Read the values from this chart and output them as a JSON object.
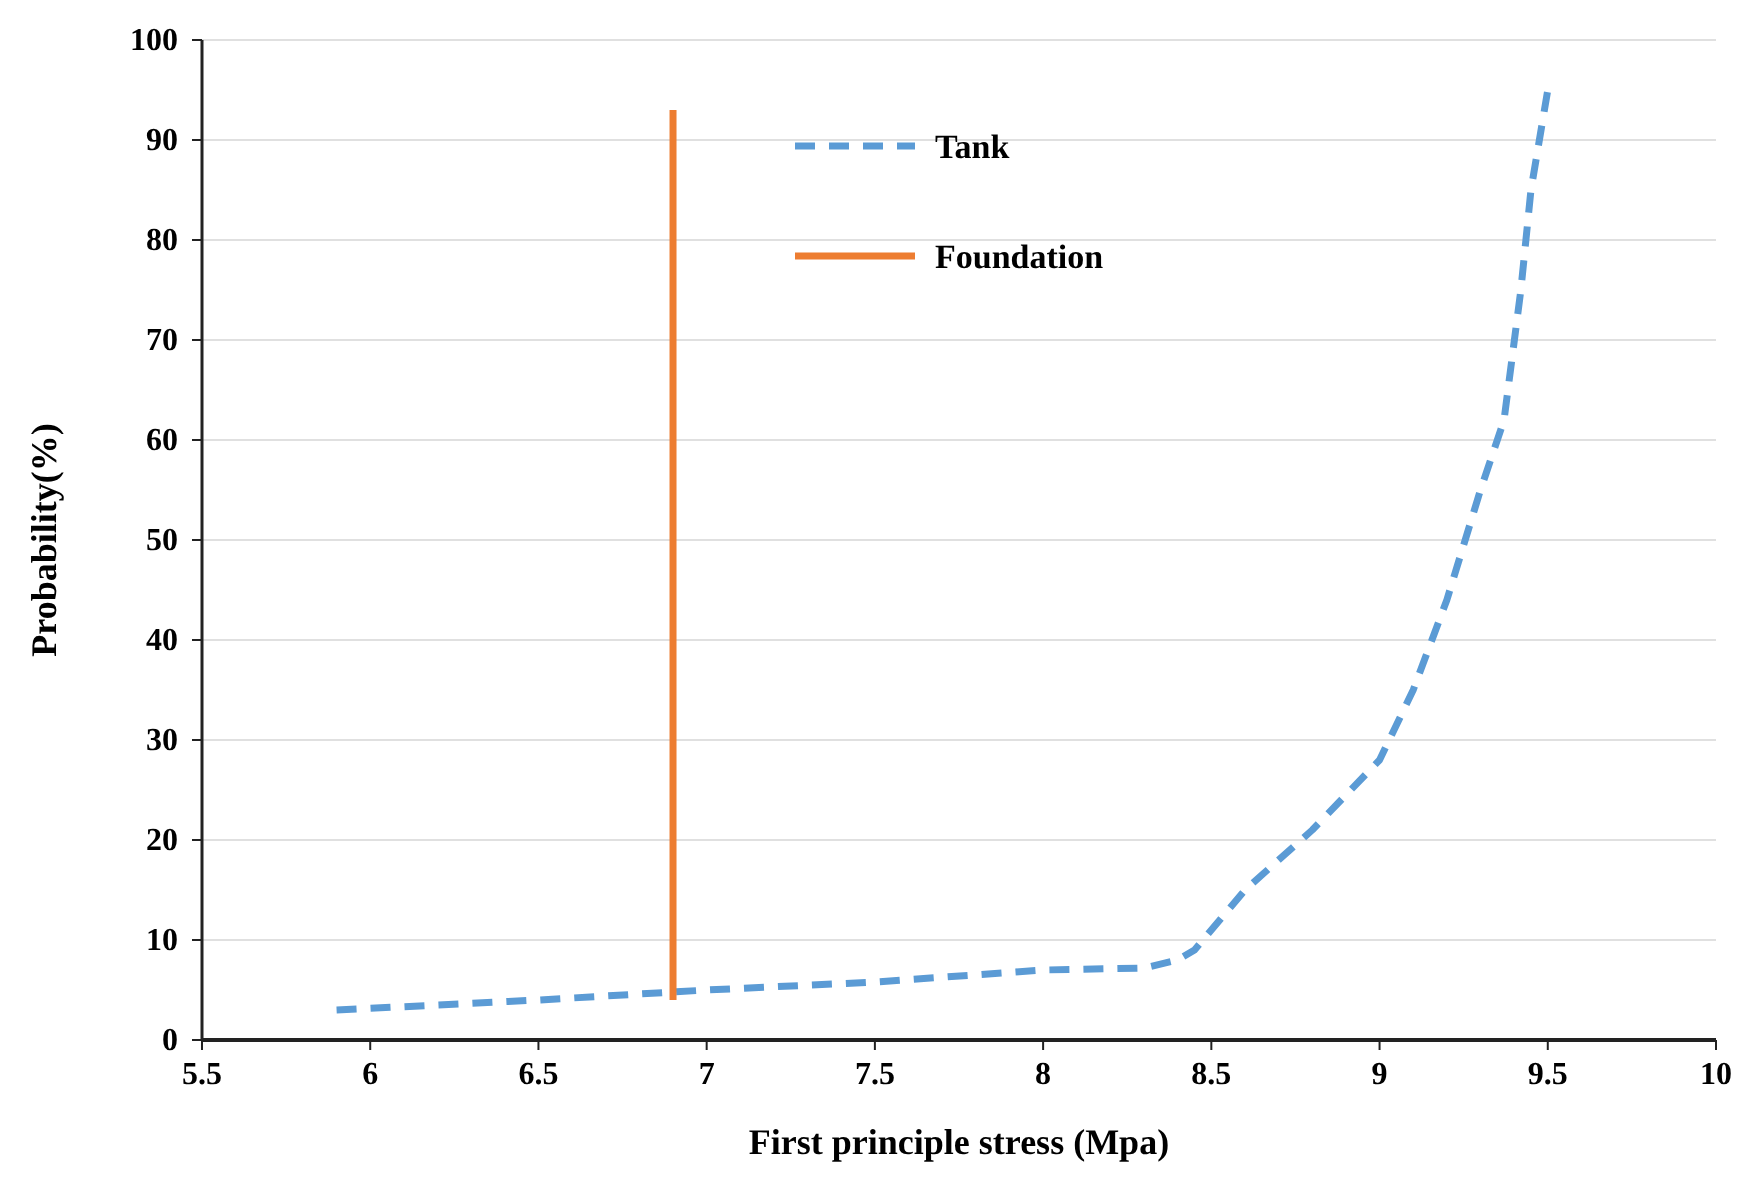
{
  "chart_data": {
    "type": "line",
    "xlabel": "First principle stress (Mpa)",
    "ylabel": "Probability(%)",
    "xlim": [
      5.5,
      10
    ],
    "xticks": [
      5.5,
      6,
      6.5,
      7,
      7.5,
      8,
      8.5,
      9,
      9.5,
      10
    ],
    "ylim": [
      0,
      100
    ],
    "yticks": [
      0,
      10,
      20,
      30,
      40,
      50,
      60,
      70,
      80,
      90,
      100
    ],
    "grid": "y",
    "legend": "top",
    "marker": "none",
    "series": [
      {
        "name": "Tank",
        "color": "#5b9bd5",
        "line_style": "dashed",
        "x": [
          5.9,
          6.5,
          7,
          7.5,
          8,
          8.3,
          8.4,
          8.45,
          8.6,
          8.8,
          9,
          9.1,
          9.2,
          9.3,
          9.37,
          9.42,
          9.45,
          9.5
        ],
        "values": [
          3,
          4,
          5,
          5.8,
          7,
          7.2,
          8,
          9,
          15,
          21,
          28,
          35,
          44,
          55,
          62,
          75,
          85,
          95
        ]
      },
      {
        "name": "Foundation",
        "color": "#ed7d31",
        "line_style": "solid",
        "x": [
          6.9,
          6.9
        ],
        "values": [
          4,
          93
        ]
      }
    ]
  }
}
